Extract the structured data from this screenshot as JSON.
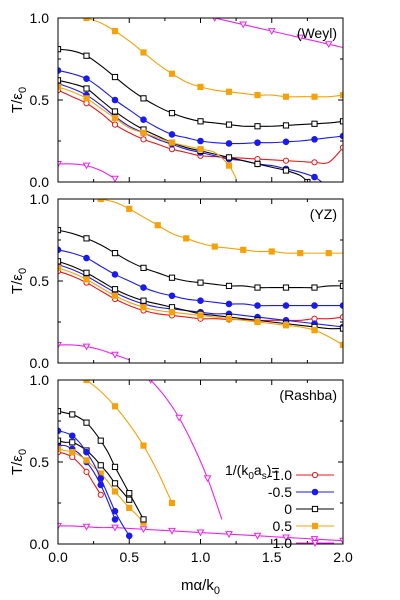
{
  "chart_data": {
    "type": "line",
    "x_axis_label": "mα/k",
    "x_axis_label_sub": "0",
    "y_axis_label": "T/ε",
    "y_axis_label_sub": "0",
    "xlim": [
      0,
      2.0
    ],
    "ylim": [
      0,
      1.0
    ],
    "x_ticks": [
      "0.0",
      "0.5",
      "1.0",
      "1.5",
      "2.0"
    ],
    "y_ticks": [
      "0.0",
      "0.5",
      "1.0"
    ],
    "legend": {
      "title": "1/(k",
      "title_sub1": "0",
      "title_mid": "a",
      "title_sub2": "s",
      "title_end": ")=",
      "entries": [
        "-1.0",
        "-0.5",
        "0",
        "0.5",
        "1.0"
      ]
    },
    "series_style": [
      {
        "color": "#e8191a",
        "marker": "circle-open"
      },
      {
        "color": "#1a1aee",
        "marker": "circle-filled"
      },
      {
        "color": "#000000",
        "marker": "square-open"
      },
      {
        "color": "#f5a20a",
        "marker": "square-filled"
      },
      {
        "color": "#ee22ee",
        "marker": "triangle-open"
      }
    ],
    "panels": [
      {
        "label": "(Weyl)",
        "series": [
          {
            "x": [
              0,
              0.1,
              0.2,
              0.3,
              0.4,
              0.5,
              0.6,
              0.7,
              0.8,
              0.9,
              1.0,
              1.1,
              1.2,
              1.3,
              1.4,
              1.5,
              1.6,
              1.7,
              1.8,
              1.9,
              2.0
            ],
            "y": [
              0.56,
              0.52,
              0.48,
              0.42,
              0.35,
              0.3,
              0.26,
              0.23,
              0.2,
              0.18,
              0.16,
              0.155,
              0.15,
              0.145,
              0.14,
              0.135,
              0.13,
              0.125,
              0.12,
              0.12,
              0.21
            ]
          },
          {
            "x": [
              0,
              0.1,
              0.2,
              0.3,
              0.4,
              0.5,
              0.6,
              0.7,
              0.8,
              0.9,
              1.0,
              1.1,
              1.2,
              1.3,
              1.4,
              1.5,
              1.6,
              1.7,
              1.8,
              1.85
            ],
            "y": [
              0.6,
              0.57,
              0.53,
              0.47,
              0.4,
              0.34,
              0.3,
              0.26,
              0.23,
              0.2,
              0.18,
              0.16,
              0.14,
              0.13,
              0.11,
              0.1,
              0.08,
              0.06,
              0.03,
              0.0
            ]
          },
          {
            "x": [
              0,
              0.1,
              0.2,
              0.3,
              0.4,
              0.5,
              0.6,
              0.7,
              0.8,
              0.9,
              1.0,
              1.1,
              1.2,
              1.3,
              1.4,
              1.5,
              1.6,
              1.7,
              1.75
            ],
            "y": [
              0.62,
              0.6,
              0.57,
              0.5,
              0.43,
              0.37,
              0.32,
              0.28,
              0.24,
              0.21,
              0.19,
              0.17,
              0.15,
              0.13,
              0.11,
              0.09,
              0.07,
              0.04,
              0.0
            ]
          },
          {
            "x": [
              0,
              0.1,
              0.2,
              0.3,
              0.4,
              0.5,
              0.6,
              0.7,
              0.8,
              0.9,
              1.0,
              1.1,
              1.2,
              1.25
            ],
            "y": [
              0.58,
              0.55,
              0.51,
              0.45,
              0.39,
              0.33,
              0.3,
              0.27,
              0.24,
              0.22,
              0.2,
              0.18,
              0.1,
              0.02
            ]
          },
          {
            "x": [
              0,
              0.1,
              0.2,
              0.3,
              0.4
            ],
            "y": [
              0.11,
              0.11,
              0.1,
              0.07,
              0.02
            ]
          }
        ],
        "upper_series": [
          {
            "x": [
              0,
              0.1,
              0.2,
              0.3,
              0.4,
              0.5,
              0.6,
              0.7,
              0.8,
              0.9,
              1.0,
              1.1,
              1.2,
              1.3,
              1.4,
              1.5,
              1.6,
              1.7,
              1.8,
              1.9,
              2.0
            ],
            "y": [
              0.68,
              0.66,
              0.63,
              0.57,
              0.5,
              0.44,
              0.38,
              0.33,
              0.29,
              0.27,
              0.25,
              0.24,
              0.235,
              0.235,
              0.24,
              0.24,
              0.245,
              0.25,
              0.26,
              0.27,
              0.28
            ]
          },
          {
            "x": [
              0,
              0.1,
              0.2,
              0.3,
              0.4,
              0.5,
              0.6,
              0.7,
              0.8,
              0.9,
              1.0,
              1.1,
              1.2,
              1.3,
              1.4,
              1.5,
              1.6,
              1.7,
              1.8,
              1.9,
              2.0
            ],
            "y": [
              0.81,
              0.8,
              0.77,
              0.71,
              0.64,
              0.57,
              0.51,
              0.46,
              0.42,
              0.39,
              0.37,
              0.36,
              0.35,
              0.34,
              0.34,
              0.34,
              0.345,
              0.35,
              0.355,
              0.36,
              0.37
            ]
          },
          {
            "x": [
              0.2,
              0.3,
              0.4,
              0.5,
              0.6,
              0.7,
              0.8,
              0.9,
              1.0,
              1.1,
              1.2,
              1.3,
              1.4,
              1.5,
              1.6,
              1.7,
              1.8,
              1.9,
              2.0
            ],
            "y": [
              1.0,
              0.97,
              0.92,
              0.86,
              0.79,
              0.72,
              0.66,
              0.61,
              0.58,
              0.56,
              0.55,
              0.54,
              0.53,
              0.53,
              0.52,
              0.52,
              0.52,
              0.52,
              0.53
            ]
          },
          {
            "x": [
              1.1,
              1.2,
              1.3,
              1.4,
              1.5,
              1.6,
              1.7,
              1.8,
              1.9,
              2.0
            ],
            "y": [
              1.0,
              0.98,
              0.96,
              0.94,
              0.92,
              0.9,
              0.88,
              0.86,
              0.84,
              0.82
            ]
          }
        ]
      },
      {
        "label": "(YZ)",
        "series": [
          {
            "x": [
              0,
              0.1,
              0.2,
              0.3,
              0.4,
              0.5,
              0.6,
              0.7,
              0.8,
              0.9,
              1.0,
              1.1,
              1.2,
              1.3,
              1.4,
              1.5,
              1.6,
              1.7,
              1.8,
              1.9,
              2.0
            ],
            "y": [
              0.56,
              0.53,
              0.49,
              0.44,
              0.39,
              0.35,
              0.32,
              0.3,
              0.29,
              0.28,
              0.27,
              0.27,
              0.265,
              0.265,
              0.26,
              0.26,
              0.26,
              0.26,
              0.27,
              0.27,
              0.28
            ]
          },
          {
            "x": [
              0,
              0.1,
              0.2,
              0.3,
              0.4,
              0.5,
              0.6,
              0.7,
              0.8,
              0.9,
              1.0,
              1.1,
              1.2,
              1.3,
              1.4,
              1.5,
              1.6,
              1.7,
              1.8,
              1.9,
              2.0
            ],
            "y": [
              0.6,
              0.57,
              0.53,
              0.48,
              0.43,
              0.39,
              0.36,
              0.34,
              0.33,
              0.32,
              0.31,
              0.3,
              0.3,
              0.29,
              0.28,
              0.27,
              0.26,
              0.25,
              0.24,
              0.23,
              0.22
            ]
          },
          {
            "x": [
              0,
              0.1,
              0.2,
              0.3,
              0.4,
              0.5,
              0.6,
              0.7,
              0.8,
              0.9,
              1.0,
              1.1,
              1.2,
              1.3,
              1.4,
              1.5,
              1.6,
              1.7,
              1.8,
              1.9,
              2.0
            ],
            "y": [
              0.62,
              0.59,
              0.55,
              0.5,
              0.45,
              0.41,
              0.38,
              0.36,
              0.34,
              0.32,
              0.3,
              0.29,
              0.28,
              0.27,
              0.26,
              0.25,
              0.24,
              0.23,
              0.22,
              0.21,
              0.21
            ]
          },
          {
            "x": [
              0,
              0.1,
              0.2,
              0.3,
              0.4,
              0.5,
              0.6,
              0.7,
              0.8,
              0.9,
              1.0,
              1.1,
              1.2,
              1.3,
              1.4,
              1.5,
              1.6,
              1.7,
              1.8,
              1.9,
              2.0
            ],
            "y": [
              0.58,
              0.55,
              0.51,
              0.46,
              0.41,
              0.37,
              0.34,
              0.32,
              0.31,
              0.3,
              0.29,
              0.28,
              0.27,
              0.26,
              0.25,
              0.24,
              0.23,
              0.22,
              0.2,
              0.16,
              0.11
            ]
          },
          {
            "x": [
              0,
              0.1,
              0.2,
              0.3,
              0.4,
              0.5
            ],
            "y": [
              0.11,
              0.11,
              0.1,
              0.08,
              0.05,
              0.02
            ]
          }
        ],
        "upper_series": [
          {
            "x": [
              0,
              0.1,
              0.2,
              0.3,
              0.4,
              0.5,
              0.6,
              0.7,
              0.8,
              0.9,
              1.0,
              1.1,
              1.2,
              1.3,
              1.4,
              1.5,
              1.6,
              1.7,
              1.8,
              1.9,
              2.0
            ],
            "y": [
              0.69,
              0.67,
              0.64,
              0.59,
              0.54,
              0.5,
              0.46,
              0.43,
              0.41,
              0.39,
              0.38,
              0.37,
              0.36,
              0.36,
              0.35,
              0.35,
              0.35,
              0.35,
              0.35,
              0.35,
              0.35
            ]
          },
          {
            "x": [
              0,
              0.1,
              0.2,
              0.3,
              0.4,
              0.5,
              0.6,
              0.7,
              0.8,
              0.9,
              1.0,
              1.1,
              1.2,
              1.3,
              1.4,
              1.5,
              1.6,
              1.7,
              1.8,
              1.9,
              2.0
            ],
            "y": [
              0.81,
              0.79,
              0.76,
              0.72,
              0.67,
              0.62,
              0.58,
              0.55,
              0.52,
              0.5,
              0.49,
              0.48,
              0.47,
              0.47,
              0.46,
              0.46,
              0.46,
              0.46,
              0.46,
              0.47,
              0.47
            ]
          },
          {
            "x": [
              0.3,
              0.4,
              0.5,
              0.6,
              0.7,
              0.8,
              0.9,
              1.0,
              1.1,
              1.2,
              1.3,
              1.4,
              1.5,
              1.6,
              1.7,
              1.8,
              1.9,
              2.0
            ],
            "y": [
              1.0,
              0.98,
              0.94,
              0.89,
              0.84,
              0.79,
              0.76,
              0.73,
              0.71,
              0.7,
              0.69,
              0.68,
              0.68,
              0.67,
              0.67,
              0.67,
              0.67,
              0.67
            ]
          }
        ]
      },
      {
        "label": "(Rashba)",
        "series": [
          {
            "x": [
              0,
              0.05,
              0.1,
              0.15,
              0.2,
              0.25,
              0.3
            ],
            "y": [
              0.56,
              0.55,
              0.53,
              0.49,
              0.44,
              0.37,
              0.3
            ]
          },
          {
            "x": [
              0,
              0.05,
              0.1,
              0.15,
              0.2,
              0.25,
              0.3,
              0.35,
              0.4
            ],
            "y": [
              0.6,
              0.6,
              0.58,
              0.55,
              0.5,
              0.44,
              0.36,
              0.26,
              0.15
            ]
          },
          {
            "x": [
              0,
              0.05,
              0.1,
              0.15,
              0.2,
              0.25,
              0.3,
              0.35,
              0.4,
              0.45,
              0.5,
              0.52
            ],
            "y": [
              0.63,
              0.62,
              0.62,
              0.6,
              0.57,
              0.53,
              0.48,
              0.43,
              0.37,
              0.32,
              0.27,
              0.27
            ]
          },
          {
            "x": [
              0,
              0.05,
              0.1,
              0.15,
              0.2,
              0.25,
              0.3,
              0.35,
              0.4,
              0.45,
              0.5,
              0.55,
              0.6
            ],
            "y": [
              0.58,
              0.57,
              0.56,
              0.54,
              0.51,
              0.47,
              0.43,
              0.38,
              0.32,
              0.27,
              0.22,
              0.18,
              0.13
            ]
          },
          {
            "x": [
              0,
              0.1,
              0.2,
              0.3,
              0.4,
              0.5,
              0.6,
              0.7,
              0.8,
              0.9,
              1.0,
              1.1,
              1.2,
              1.3,
              1.4,
              1.5,
              1.6,
              1.7,
              1.8,
              1.9,
              2.0
            ],
            "y": [
              0.11,
              0.11,
              0.105,
              0.1,
              0.1,
              0.095,
              0.09,
              0.085,
              0.08,
              0.075,
              0.07,
              0.065,
              0.06,
              0.055,
              0.05,
              0.045,
              0.04,
              0.035,
              0.03,
              0.025,
              0.02
            ]
          }
        ],
        "upper_series": [
          {
            "x": [
              0,
              0.05,
              0.1,
              0.15,
              0.2,
              0.25,
              0.3,
              0.35,
              0.4,
              0.45,
              0.5
            ],
            "y": [
              0.69,
              0.68,
              0.66,
              0.62,
              0.56,
              0.49,
              0.4,
              0.3,
              0.2,
              0.12,
              0.05
            ]
          },
          {
            "x": [
              0,
              0.05,
              0.1,
              0.15,
              0.2,
              0.25,
              0.3,
              0.35,
              0.4,
              0.45,
              0.5,
              0.55,
              0.6
            ],
            "y": [
              0.81,
              0.8,
              0.79,
              0.77,
              0.74,
              0.69,
              0.63,
              0.56,
              0.47,
              0.39,
              0.31,
              0.23,
              0.15
            ]
          },
          {
            "x": [
              0.2,
              0.3,
              0.4,
              0.5,
              0.6,
              0.7,
              0.8
            ],
            "y": [
              1.0,
              0.93,
              0.84,
              0.73,
              0.6,
              0.44,
              0.25
            ]
          },
          {
            "x": [
              0.65,
              0.75,
              0.85,
              0.95,
              1.05,
              1.15
            ],
            "y": [
              1.0,
              0.9,
              0.77,
              0.6,
              0.4,
              0.15
            ]
          }
        ]
      }
    ]
  }
}
